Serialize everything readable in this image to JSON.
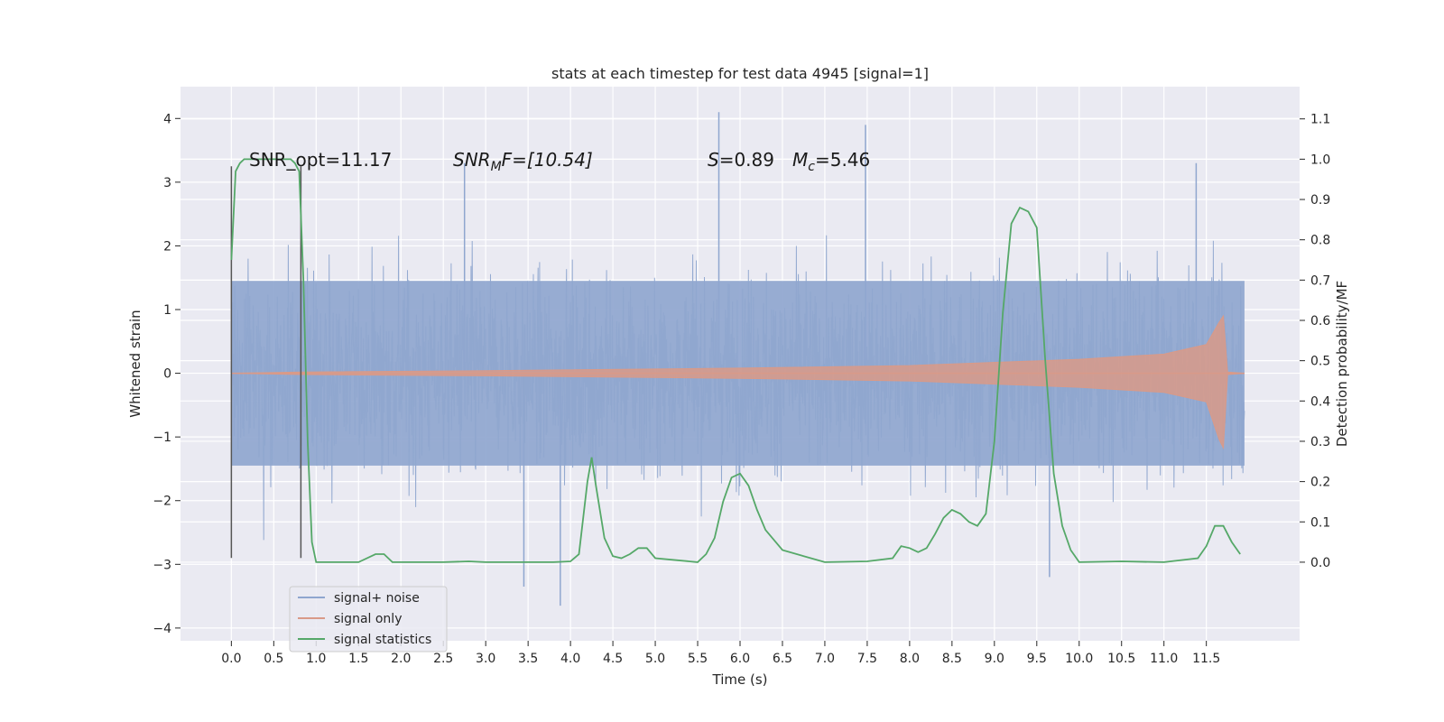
{
  "chart_data": {
    "type": "line",
    "title": "stats at each timestep for test data 4945 [signal=1]",
    "xlabel": "Time (s)",
    "ylabel_left": "Whitened strain",
    "ylabel_right": "Detection probability/MF",
    "xlim": [
      -0.6,
      12.6
    ],
    "ylim_left": [
      -4.2,
      4.5
    ],
    "ylim_right": [
      -0.195,
      1.18
    ],
    "x_ticks": [
      0.0,
      0.5,
      1.0,
      1.5,
      2.0,
      2.5,
      3.0,
      3.5,
      4.0,
      4.5,
      5.0,
      5.5,
      6.0,
      6.5,
      7.0,
      7.5,
      8.0,
      8.5,
      9.0,
      9.5,
      10.0,
      10.5,
      11.0,
      11.5
    ],
    "x_tick_labels": [
      "0.0",
      "0.5",
      "1.0",
      "1.5",
      "2.0",
      "2.5",
      "3.0",
      "3.5",
      "4.0",
      "4.5",
      "5.0",
      "5.5",
      "6.0",
      "6.5",
      "7.0",
      "7.5",
      "8.0",
      "8.5",
      "9.0",
      "9.5",
      "10.0",
      "10.5",
      "11.0",
      "11.5"
    ],
    "y_left_ticks": [
      4,
      3,
      2,
      1,
      0,
      -1,
      -2,
      -3,
      -4
    ],
    "y_left_tick_labels": [
      "4",
      "3",
      "2",
      "1",
      "0",
      "−1",
      "−2",
      "−3",
      "−4"
    ],
    "y_right_ticks": [
      1.1,
      1.0,
      0.9,
      0.8,
      0.7,
      0.6,
      0.5,
      0.4,
      0.3,
      0.2,
      0.1,
      0.0
    ],
    "y_right_tick_labels": [
      "1.1",
      "1.0",
      "0.9",
      "0.8",
      "0.7",
      "0.6",
      "0.5",
      "0.4",
      "0.3",
      "0.2",
      "0.1",
      "0.0"
    ],
    "grid": true,
    "legend_position": "lower-left",
    "annotations": {
      "snr_opt": "SNR_opt=11.17",
      "snr_mf": "SNR",
      "snr_mf_sub": "M",
      "snr_mf_rest": "F=[10.54]",
      "s_label": "S",
      "s_rest": "=0.89",
      "mc_label": "M",
      "mc_sub": "c",
      "mc_rest": "=5.46"
    },
    "vertical_markers": [
      0.0,
      0.82
    ],
    "series": [
      {
        "name": "signal+ noise",
        "axis": "left",
        "color": "#8fa6cf",
        "time_range": [
          0.0,
          11.95
        ],
        "typical_amplitude": 1.45,
        "peaks": [
          {
            "x": 3.88,
            "y": -3.65
          },
          {
            "x": 5.75,
            "y": 4.1
          },
          {
            "x": 7.48,
            "y": 3.9
          },
          {
            "x": 3.45,
            "y": -3.35
          },
          {
            "x": 11.38,
            "y": 3.3
          },
          {
            "x": 2.75,
            "y": 3.3
          },
          {
            "x": 9.65,
            "y": -3.2
          }
        ]
      },
      {
        "name": "signal only",
        "axis": "left",
        "color": "#d99a88",
        "time_range": [
          0.0,
          11.95
        ],
        "envelope": [
          [
            0.0,
            0.0
          ],
          [
            0.82,
            0.02
          ],
          [
            3.0,
            0.04
          ],
          [
            6.0,
            0.08
          ],
          [
            8.0,
            0.12
          ],
          [
            10.0,
            0.22
          ],
          [
            11.0,
            0.3
          ],
          [
            11.5,
            0.45
          ],
          [
            11.65,
            0.8
          ],
          [
            11.7,
            0.9
          ],
          [
            11.75,
            0.02
          ],
          [
            11.95,
            0.0
          ]
        ]
      },
      {
        "name": "signal statistics",
        "axis": "right",
        "color": "#55a868",
        "x": [
          0.0,
          0.05,
          0.1,
          0.15,
          0.2,
          0.3,
          0.5,
          0.7,
          0.75,
          0.8,
          0.85,
          0.9,
          0.95,
          1.0,
          1.1,
          1.5,
          1.7,
          1.8,
          1.9,
          2.0,
          2.5,
          2.8,
          3.0,
          3.5,
          3.8,
          4.0,
          4.1,
          4.2,
          4.25,
          4.3,
          4.4,
          4.5,
          4.6,
          4.7,
          4.8,
          4.9,
          5.0,
          5.5,
          5.6,
          5.7,
          5.8,
          5.9,
          6.0,
          6.1,
          6.2,
          6.3,
          6.5,
          7.0,
          7.5,
          7.8,
          7.9,
          8.0,
          8.1,
          8.2,
          8.3,
          8.4,
          8.5,
          8.6,
          8.7,
          8.8,
          8.9,
          9.0,
          9.1,
          9.2,
          9.3,
          9.4,
          9.5,
          9.6,
          9.7,
          9.8,
          9.9,
          10.0,
          10.5,
          11.0,
          11.4,
          11.5,
          11.6,
          11.7,
          11.8,
          11.9
        ],
        "y": [
          0.75,
          0.97,
          0.99,
          1.0,
          1.0,
          1.0,
          1.0,
          1.0,
          0.99,
          0.97,
          0.7,
          0.3,
          0.05,
          0.0,
          0.0,
          0.0,
          0.02,
          0.02,
          0.0,
          0.0,
          0.0,
          0.002,
          0.0,
          0.0,
          0.0,
          0.002,
          0.02,
          0.2,
          0.26,
          0.19,
          0.06,
          0.015,
          0.01,
          0.02,
          0.035,
          0.035,
          0.01,
          0.0,
          0.02,
          0.06,
          0.15,
          0.21,
          0.22,
          0.19,
          0.13,
          0.08,
          0.03,
          0.0,
          0.002,
          0.01,
          0.04,
          0.035,
          0.025,
          0.035,
          0.07,
          0.11,
          0.13,
          0.12,
          0.1,
          0.09,
          0.12,
          0.3,
          0.62,
          0.84,
          0.88,
          0.87,
          0.83,
          0.5,
          0.22,
          0.09,
          0.03,
          0.0,
          0.002,
          0.0,
          0.01,
          0.04,
          0.09,
          0.09,
          0.05,
          0.02
        ]
      }
    ]
  }
}
